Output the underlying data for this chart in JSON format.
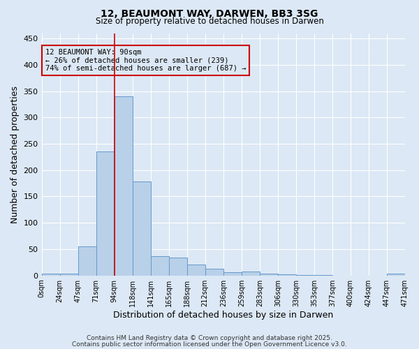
{
  "title": "12, BEAUMONT WAY, DARWEN, BB3 3SG",
  "subtitle": "Size of property relative to detached houses in Darwen",
  "xlabel": "Distribution of detached houses by size in Darwen",
  "ylabel": "Number of detached properties",
  "bin_labels": [
    "0sqm",
    "24sqm",
    "47sqm",
    "71sqm",
    "94sqm",
    "118sqm",
    "141sqm",
    "165sqm",
    "188sqm",
    "212sqm",
    "236sqm",
    "259sqm",
    "283sqm",
    "306sqm",
    "330sqm",
    "353sqm",
    "377sqm",
    "400sqm",
    "424sqm",
    "447sqm",
    "471sqm"
  ],
  "bar_heights": [
    3,
    3,
    55,
    235,
    340,
    178,
    37,
    34,
    21,
    13,
    6,
    7,
    3,
    2,
    1,
    1,
    0,
    0,
    0,
    3
  ],
  "bar_color": "#b8d0e8",
  "bar_edge_color": "#6699cc",
  "property_size_bin": 4,
  "red_line_color": "#cc0000",
  "annotation_text": "12 BEAUMONT WAY: 90sqm\n← 26% of detached houses are smaller (239)\n74% of semi-detached houses are larger (687) →",
  "ylim": [
    0,
    460
  ],
  "yticks": [
    0,
    50,
    100,
    150,
    200,
    250,
    300,
    350,
    400,
    450
  ],
  "bg_color": "#dce8f5",
  "footer1": "Contains HM Land Registry data © Crown copyright and database right 2025.",
  "footer2": "Contains public sector information licensed under the Open Government Licence v3.0."
}
